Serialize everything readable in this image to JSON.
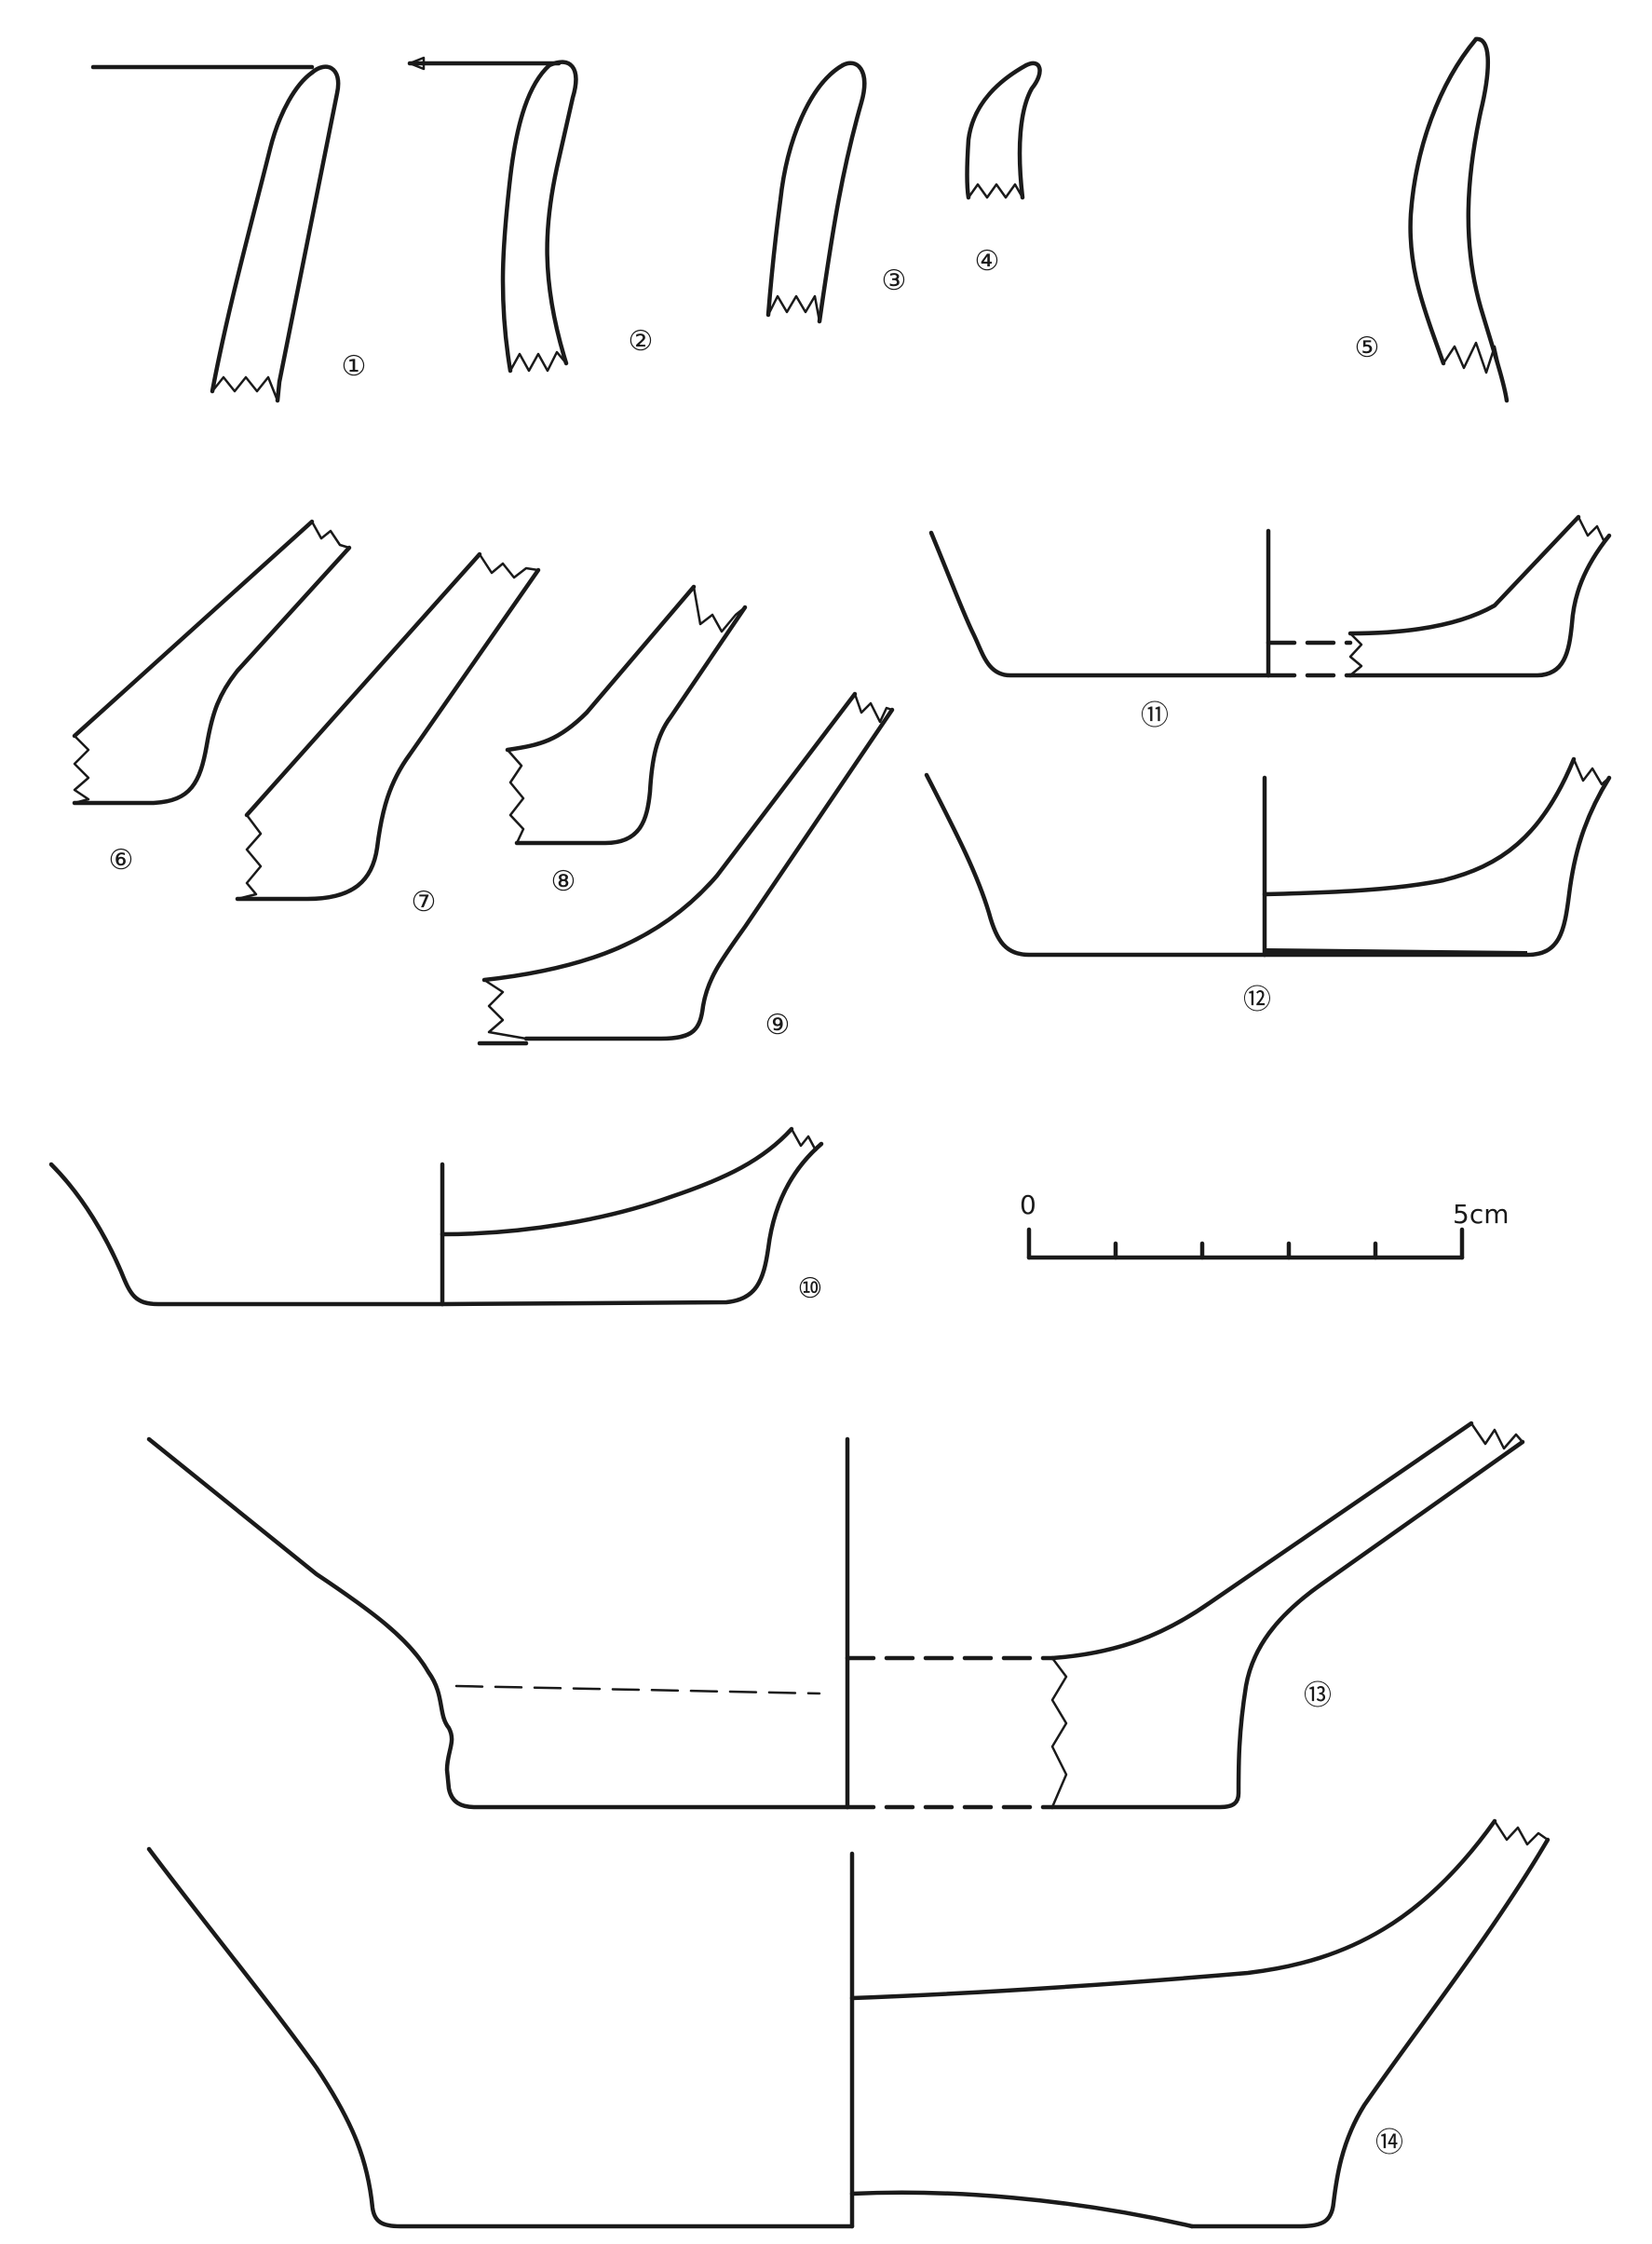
{
  "figure": {
    "labels": [
      "①",
      "②",
      "③",
      "④",
      "⑤",
      "⑥",
      "⑦",
      "⑧",
      "⑨",
      "⑩",
      "⑪",
      "⑫",
      "⑬",
      "⑭"
    ],
    "scale_bar": {
      "start_label": "0",
      "end_label": "5cm"
    },
    "colors": {
      "ink": "#1a1a1a",
      "paper": "#ffffff"
    }
  }
}
